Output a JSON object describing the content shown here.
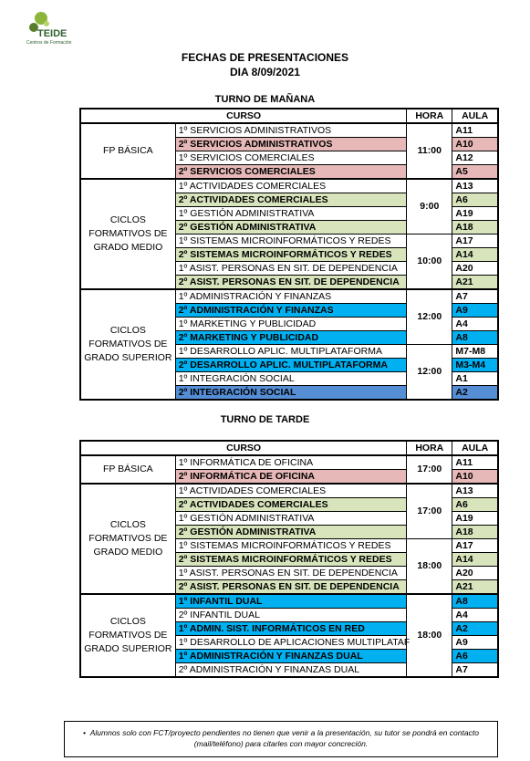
{
  "logo": {
    "name": "TEIDE",
    "tagline": "Centros de Formación"
  },
  "title": [
    "FECHAS DE PRESENTACIONES",
    "DIA 8/09/2021"
  ],
  "sections": [
    {
      "heading": "TURNO DE MAÑANA",
      "headers": [
        "CURSO",
        "HORA",
        "AULA"
      ],
      "groups": [
        {
          "label": "FP BÁSICA",
          "blocks": [
            {
              "hora": "11:00",
              "rows": [
                {
                  "curso": "1º SERVICIOS ADMINISTRATIVOS",
                  "aula": "A11",
                  "color": "#ffffff"
                },
                {
                  "curso": "2º SERVICIOS ADMINISTRATIVOS",
                  "aula": "A10",
                  "color": "#e6b8b7"
                },
                {
                  "curso": "1º SERVICIOS COMERCIALES",
                  "aula": "A12",
                  "color": "#ffffff"
                },
                {
                  "curso": "2º SERVICIOS COMERCIALES",
                  "aula": "A5",
                  "color": "#e6b8b7"
                }
              ]
            }
          ]
        },
        {
          "label": "CICLOS FORMATIVOS DE GRADO MEDIO",
          "blocks": [
            {
              "hora": "9:00",
              "rows": [
                {
                  "curso": "1º ACTIVIDADES COMERCIALES",
                  "aula": "A13",
                  "color": "#ffffff"
                },
                {
                  "curso": "2º ACTIVIDADES COMERCIALES",
                  "aula": "A6",
                  "color": "#d8e4bc"
                },
                {
                  "curso": "1º GESTIÓN ADMINISTRATIVA",
                  "aula": "A19",
                  "color": "#ffffff"
                },
                {
                  "curso": "2º GESTIÓN ADMINISTRATIVA",
                  "aula": "A18",
                  "color": "#d8e4bc"
                }
              ]
            },
            {
              "hora": "10:00",
              "rows": [
                {
                  "curso": "1º SISTEMAS MICROINFORMÁTICOS Y REDES",
                  "aula": "A17",
                  "color": "#ffffff"
                },
                {
                  "curso": "2º SISTEMAS MICROINFORMÁTICOS Y REDES",
                  "aula": "A14",
                  "color": "#d8e4bc"
                },
                {
                  "curso": "1º ASIST. PERSONAS EN SIT. DE DEPENDENCIA",
                  "aula": "A20",
                  "color": "#ffffff"
                },
                {
                  "curso": "2º ASIST. PERSONAS EN SIT. DE DEPENDENCIA",
                  "aula": "A21",
                  "color": "#d8e4bc"
                }
              ]
            }
          ]
        },
        {
          "label": "CICLOS FORMATIVOS DE GRADO SUPERIOR",
          "blocks": [
            {
              "hora": "12:00",
              "rows": [
                {
                  "curso": "1º ADMINISTRACIÓN Y FINANZAS",
                  "aula": "A7",
                  "color": "#ffffff"
                },
                {
                  "curso": "2º ADMINISTRACIÓN Y FINANZAS",
                  "aula": "A9",
                  "color": "#00b0f0"
                },
                {
                  "curso": "1º MARKETING Y PUBLICIDAD",
                  "aula": "A4",
                  "color": "#ffffff"
                },
                {
                  "curso": "2º MARKETING Y PUBLICIDAD",
                  "aula": "A8",
                  "color": "#00b0f0"
                }
              ]
            },
            {
              "hora": "12:00",
              "rows": [
                {
                  "curso": "1º DESARROLLO APLIC. MULTIPLATAFORMA",
                  "aula": "M7-M8",
                  "color": "#ffffff"
                },
                {
                  "curso": "2º DESARROLLO APLIC. MULTIPLATAFORMA",
                  "aula": "M3-M4",
                  "color": "#00b0f0"
                },
                {
                  "curso": "1º INTEGRACIÓN SOCIAL",
                  "aula": "A1",
                  "color": "#ffffff"
                },
                {
                  "curso": "2º INTEGRACIÓN SOCIAL",
                  "aula": "A2",
                  "color": "#558ed5"
                }
              ]
            }
          ]
        }
      ]
    },
    {
      "heading": "TURNO DE TARDE",
      "headers": [
        "CURSO",
        "HORA",
        "AULA"
      ],
      "groups": [
        {
          "label": "FP BÁSICA",
          "blocks": [
            {
              "hora": "17:00",
              "rows": [
                {
                  "curso": "1º INFORMÁTICA DE OFICINA",
                  "aula": "A11",
                  "color": "#ffffff"
                },
                {
                  "curso": "2º INFORMÁTICA DE OFICINA",
                  "aula": "A10",
                  "color": "#e6b8b7"
                }
              ]
            }
          ]
        },
        {
          "label": "CICLOS FORMATIVOS DE GRADO MEDIO",
          "blocks": [
            {
              "hora": "17:00",
              "rows": [
                {
                  "curso": "1º ACTIVIDADES COMERCIALES",
                  "aula": "A13",
                  "color": "#ffffff"
                },
                {
                  "curso": "2º ACTIVIDADES COMERCIALES",
                  "aula": "A6",
                  "color": "#d8e4bc"
                },
                {
                  "curso": "1º GESTIÓN ADMINISTRATIVA",
                  "aula": "A19",
                  "color": "#ffffff"
                },
                {
                  "curso": "2º GESTIÓN ADMINISTRATIVA",
                  "aula": "A18",
                  "color": "#d8e4bc"
                }
              ]
            },
            {
              "hora": "18:00",
              "rows": [
                {
                  "curso": "1º SISTEMAS MICROINFORMÁTICOS Y REDES",
                  "aula": "A17",
                  "color": "#ffffff"
                },
                {
                  "curso": "2º SISTEMAS MICROINFORMÁTICOS Y REDES",
                  "aula": "A14",
                  "color": "#d8e4bc"
                },
                {
                  "curso": "1º ASIST. PERSONAS EN SIT. DE DEPENDENCIA",
                  "aula": "A20",
                  "color": "#ffffff"
                },
                {
                  "curso": "2º ASIST. PERSONAS EN SIT. DE DEPENDENCIA",
                  "aula": "A21",
                  "color": "#d8e4bc"
                }
              ]
            }
          ]
        },
        {
          "label": "CICLOS FORMATIVOS DE GRADO SUPERIOR",
          "blocks": [
            {
              "hora": "18:00",
              "rows": [
                {
                  "curso": "1º INFANTIL DUAL",
                  "aula": "A8",
                  "color": "#00b0f0"
                },
                {
                  "curso": "2º INFANTIL DUAL",
                  "aula": "A4",
                  "color": "#ffffff"
                },
                {
                  "curso": "1º ADMIN. SIST. INFORMÁTICOS  EN RED",
                  "aula": "A2",
                  "color": "#00b0f0"
                },
                {
                  "curso": "1º DESARROLLO DE APLICACIONES MULTIPLATAF",
                  "aula": "A9",
                  "color": "#ffffff"
                },
                {
                  "curso": "1º ADMINISTRACIÓN Y FINANZAS DUAL",
                  "aula": "A6",
                  "color": "#00b0f0"
                },
                {
                  "curso": "2º ADMINISTRACIÓN Y FINANZAS DUAL",
                  "aula": "A7",
                  "color": "#ffffff"
                }
              ]
            }
          ]
        }
      ]
    }
  ],
  "note": "Alumnos solo con FCT/proyecto pendientes no tienen que venir a la presentación, su tutor se pondrá en contacto (mail/teléfono) para citarles con mayor concreción."
}
